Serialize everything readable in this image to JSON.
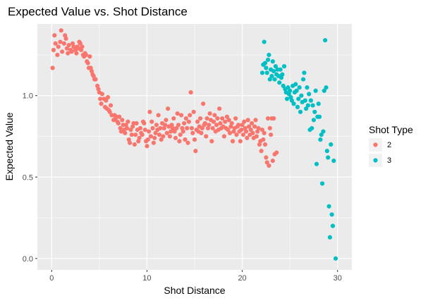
{
  "chart_data": {
    "type": "scatter",
    "title": "Expected Value vs. Shot Distance",
    "xlabel": "Shot Distance",
    "ylabel": "Expected Value",
    "xlim": [
      -1.5,
      31.5
    ],
    "ylim": [
      -0.07,
      1.44
    ],
    "x_ticks": [
      0,
      10,
      20,
      30
    ],
    "x_tick_labels": [
      "0",
      "10",
      "20",
      "30"
    ],
    "y_ticks": [
      0.0,
      0.5,
      1.0
    ],
    "y_tick_labels": [
      "0.0",
      "0.5",
      "1.0"
    ],
    "grid": true,
    "legend": {
      "title": "Shot Type",
      "position": "right",
      "entries": [
        {
          "label": "2",
          "color": "#F8766D"
        },
        {
          "label": "3",
          "color": "#00BFC4"
        }
      ]
    },
    "background": "#EBEBEB",
    "grid_color": "#FFFFFF",
    "series": [
      {
        "name": "2",
        "color": "#F8766D",
        "points": [
          [
            0.1,
            1.17
          ],
          [
            0.2,
            1.28
          ],
          [
            0.3,
            1.37
          ],
          [
            0.4,
            1.32
          ],
          [
            0.6,
            1.25
          ],
          [
            0.7,
            1.3
          ],
          [
            0.9,
            1.33
          ],
          [
            1.0,
            1.4
          ],
          [
            1.1,
            1.27
          ],
          [
            1.3,
            1.32
          ],
          [
            1.4,
            1.37
          ],
          [
            1.5,
            1.35
          ],
          [
            1.6,
            1.29
          ],
          [
            1.7,
            1.26
          ],
          [
            1.8,
            1.31
          ],
          [
            2.0,
            1.28
          ],
          [
            2.1,
            1.27
          ],
          [
            2.2,
            1.32
          ],
          [
            2.3,
            1.3
          ],
          [
            2.5,
            1.28
          ],
          [
            2.6,
            1.26
          ],
          [
            2.7,
            1.3
          ],
          [
            2.8,
            1.29
          ],
          [
            2.9,
            1.33
          ],
          [
            3.0,
            1.32
          ],
          [
            3.1,
            1.28
          ],
          [
            3.2,
            1.3
          ],
          [
            3.3,
            1.25
          ],
          [
            3.4,
            1.24
          ],
          [
            3.5,
            1.26
          ],
          [
            3.6,
            1.25
          ],
          [
            3.7,
            1.21
          ],
          [
            3.8,
            1.2
          ],
          [
            3.9,
            1.17
          ],
          [
            4.0,
            1.24
          ],
          [
            4.1,
            1.17
          ],
          [
            4.2,
            1.15
          ],
          [
            4.3,
            1.13
          ],
          [
            4.4,
            1.12
          ],
          [
            4.5,
            1.1
          ],
          [
            4.6,
            1.1
          ],
          [
            4.8,
            1.06
          ],
          [
            4.9,
            1.04
          ],
          [
            5.0,
            1.02
          ],
          [
            5.1,
            0.98
          ],
          [
            5.2,
            0.95
          ],
          [
            5.3,
            1.01
          ],
          [
            5.5,
            0.98
          ],
          [
            5.6,
            0.93
          ],
          [
            5.7,
            0.97
          ],
          [
            5.8,
            0.92
          ],
          [
            5.9,
            0.99
          ],
          [
            6.0,
            0.91
          ],
          [
            6.1,
            0.9
          ],
          [
            6.2,
            0.94
          ],
          [
            6.3,
            0.88
          ],
          [
            6.5,
            0.85
          ],
          [
            6.6,
            0.88
          ],
          [
            6.7,
            0.86
          ],
          [
            6.8,
            0.87
          ],
          [
            6.9,
            0.84
          ],
          [
            7.0,
            0.83
          ],
          [
            7.1,
            0.87
          ],
          [
            7.2,
            0.8
          ],
          [
            7.3,
            0.78
          ],
          [
            7.4,
            0.85
          ],
          [
            7.5,
            0.82
          ],
          [
            7.6,
            0.79
          ],
          [
            7.7,
            0.77
          ],
          [
            7.8,
            0.82
          ],
          [
            7.9,
            0.8
          ],
          [
            8.0,
            0.84
          ],
          [
            8.1,
            0.73
          ],
          [
            8.2,
            0.71
          ],
          [
            8.3,
            0.79
          ],
          [
            8.4,
            0.76
          ],
          [
            8.5,
            0.81
          ],
          [
            8.6,
            0.83
          ],
          [
            8.7,
            0.7
          ],
          [
            8.8,
            0.76
          ],
          [
            8.9,
            0.83
          ],
          [
            9.0,
            0.79
          ],
          [
            9.1,
            0.72
          ],
          [
            9.2,
            0.74
          ],
          [
            9.3,
            0.8
          ],
          [
            9.4,
            0.77
          ],
          [
            9.5,
            0.76
          ],
          [
            9.6,
            0.84
          ],
          [
            9.7,
            0.83
          ],
          [
            9.8,
            0.79
          ],
          [
            9.9,
            0.72
          ],
          [
            10.0,
            0.69
          ],
          [
            10.1,
            0.73
          ],
          [
            10.2,
            0.78
          ],
          [
            10.3,
            0.9
          ],
          [
            10.4,
            0.75
          ],
          [
            10.5,
            0.84
          ],
          [
            10.6,
            0.8
          ],
          [
            10.7,
            0.71
          ],
          [
            10.8,
            0.74
          ],
          [
            10.9,
            0.77
          ],
          [
            11.0,
            0.82
          ],
          [
            11.1,
            0.79
          ],
          [
            11.2,
            0.88
          ],
          [
            11.3,
            0.76
          ],
          [
            11.4,
            0.8
          ],
          [
            11.5,
            0.73
          ],
          [
            11.6,
            0.83
          ],
          [
            11.7,
            0.75
          ],
          [
            11.8,
            0.8
          ],
          [
            11.9,
            0.82
          ],
          [
            12.0,
            0.85
          ],
          [
            12.1,
            0.77
          ],
          [
            12.2,
            0.92
          ],
          [
            12.3,
            0.81
          ],
          [
            12.4,
            0.75
          ],
          [
            12.5,
            0.78
          ],
          [
            12.6,
            0.82
          ],
          [
            12.7,
            0.8
          ],
          [
            12.8,
            0.86
          ],
          [
            12.9,
            0.78
          ],
          [
            13.0,
            0.74
          ],
          [
            13.1,
            0.8
          ],
          [
            13.2,
            0.89
          ],
          [
            13.3,
            0.82
          ],
          [
            13.4,
            0.72
          ],
          [
            13.5,
            0.76
          ],
          [
            13.6,
            0.88
          ],
          [
            13.7,
            0.8
          ],
          [
            13.8,
            0.78
          ],
          [
            13.9,
            0.83
          ],
          [
            14.0,
            0.73
          ],
          [
            14.1,
            0.86
          ],
          [
            14.2,
            0.8
          ],
          [
            14.3,
            0.71
          ],
          [
            14.4,
            0.84
          ],
          [
            14.5,
            0.88
          ],
          [
            14.6,
            1.02
          ],
          [
            14.7,
            0.8
          ],
          [
            14.8,
            0.77
          ],
          [
            14.9,
            0.9
          ],
          [
            15.0,
            0.73
          ],
          [
            15.1,
            0.66
          ],
          [
            15.2,
            0.79
          ],
          [
            15.3,
            0.84
          ],
          [
            15.4,
            0.78
          ],
          [
            15.5,
            0.81
          ],
          [
            15.6,
            0.86
          ],
          [
            15.7,
            0.77
          ],
          [
            15.8,
            0.8
          ],
          [
            15.9,
            0.95
          ],
          [
            16.0,
            0.82
          ],
          [
            16.1,
            0.83
          ],
          [
            16.2,
            0.75
          ],
          [
            16.3,
            0.86
          ],
          [
            16.4,
            0.8
          ],
          [
            16.5,
            0.82
          ],
          [
            16.6,
            0.89
          ],
          [
            16.7,
            0.85
          ],
          [
            16.8,
            0.72
          ],
          [
            16.9,
            0.8
          ],
          [
            17.0,
            0.84
          ],
          [
            17.1,
            0.88
          ],
          [
            17.2,
            0.78
          ],
          [
            17.3,
            0.82
          ],
          [
            17.4,
            0.86
          ],
          [
            17.5,
            0.79
          ],
          [
            17.6,
            0.92
          ],
          [
            17.7,
            0.83
          ],
          [
            17.8,
            0.8
          ],
          [
            17.9,
            0.86
          ],
          [
            18.0,
            0.81
          ],
          [
            18.1,
            0.75
          ],
          [
            18.2,
            0.84
          ],
          [
            18.3,
            0.8
          ],
          [
            18.4,
            0.87
          ],
          [
            18.5,
            0.79
          ],
          [
            18.6,
            0.85
          ],
          [
            18.7,
            0.77
          ],
          [
            18.8,
            0.81
          ],
          [
            18.9,
            0.83
          ],
          [
            19.0,
            0.72
          ],
          [
            19.1,
            0.78
          ],
          [
            19.2,
            0.8
          ],
          [
            19.3,
            0.86
          ],
          [
            19.4,
            0.76
          ],
          [
            19.5,
            0.81
          ],
          [
            19.6,
            0.82
          ],
          [
            19.7,
            0.78
          ],
          [
            19.8,
            0.72
          ],
          [
            19.9,
            0.79
          ],
          [
            20.0,
            0.82
          ],
          [
            20.1,
            0.76
          ],
          [
            20.2,
            0.84
          ],
          [
            20.3,
            0.8
          ],
          [
            20.4,
            0.78
          ],
          [
            20.5,
            0.74
          ],
          [
            20.6,
            0.85
          ],
          [
            20.7,
            0.81
          ],
          [
            20.8,
            0.76
          ],
          [
            20.9,
            0.79
          ],
          [
            21.0,
            0.83
          ],
          [
            21.1,
            0.77
          ],
          [
            21.2,
            0.74
          ],
          [
            21.3,
            0.81
          ],
          [
            21.4,
            0.85
          ],
          [
            21.5,
            0.75
          ],
          [
            21.6,
            0.78
          ],
          [
            21.7,
            0.8
          ],
          [
            21.8,
            0.7
          ],
          [
            21.9,
            0.72
          ],
          [
            22.0,
            0.66
          ],
          [
            22.1,
            0.79
          ],
          [
            22.2,
            0.73
          ],
          [
            22.3,
            0.77
          ],
          [
            22.4,
            0.7
          ],
          [
            22.5,
            0.62
          ],
          [
            22.6,
            0.59
          ],
          [
            22.7,
            0.86
          ],
          [
            22.8,
            0.57
          ],
          [
            22.9,
            0.8
          ],
          [
            23.0,
            0.76
          ],
          [
            23.1,
            0.86
          ],
          [
            23.2,
            0.6
          ],
          [
            23.3,
            0.86
          ],
          [
            23.4,
            0.64
          ],
          [
            23.6,
            0.65
          ]
        ]
      },
      {
        "name": "3",
        "color": "#00BFC4",
        "points": [
          [
            22.1,
            1.14
          ],
          [
            22.2,
            1.19
          ],
          [
            22.3,
            1.33
          ],
          [
            22.4,
            1.2
          ],
          [
            22.5,
            1.17
          ],
          [
            22.6,
            1.14
          ],
          [
            22.7,
            1.22
          ],
          [
            22.8,
            1.25
          ],
          [
            22.9,
            1.1
          ],
          [
            23.0,
            1.16
          ],
          [
            23.1,
            1.12
          ],
          [
            23.2,
            1.21
          ],
          [
            23.3,
            1.15
          ],
          [
            23.4,
            1.1
          ],
          [
            23.5,
            1.18
          ],
          [
            23.6,
            1.13
          ],
          [
            23.7,
            1.16
          ],
          [
            23.8,
            1.12
          ],
          [
            23.9,
            1.08
          ],
          [
            24.0,
            1.16
          ],
          [
            24.1,
            1.11
          ],
          [
            24.2,
            1.13
          ],
          [
            24.3,
            1.06
          ],
          [
            24.4,
            1.18
          ],
          [
            24.5,
            1.04
          ],
          [
            24.6,
            1.02
          ],
          [
            24.7,
            0.98
          ],
          [
            24.8,
            1.05
          ],
          [
            24.9,
            1.01
          ],
          [
            25.0,
            1.03
          ],
          [
            25.1,
            0.99
          ],
          [
            25.2,
            0.97
          ],
          [
            25.3,
            1.06
          ],
          [
            25.4,
            0.95
          ],
          [
            25.5,
            1.02
          ],
          [
            25.6,
            1.07
          ],
          [
            25.7,
            1.03
          ],
          [
            25.8,
            0.93
          ],
          [
            25.9,
            0.98
          ],
          [
            26.0,
            1.05
          ],
          [
            26.1,
            0.9
          ],
          [
            26.2,
            1.0
          ],
          [
            26.3,
            0.96
          ],
          [
            26.4,
            1.1
          ],
          [
            26.5,
            1.14
          ],
          [
            26.6,
            0.97
          ],
          [
            26.7,
            0.92
          ],
          [
            26.8,
            1.05
          ],
          [
            26.9,
            0.94
          ],
          [
            27.0,
            1.01
          ],
          [
            27.1,
            0.79
          ],
          [
            27.2,
            0.97
          ],
          [
            27.3,
            0.8
          ],
          [
            27.4,
            0.94
          ],
          [
            27.5,
            0.85
          ],
          [
            27.6,
            0.9
          ],
          [
            27.7,
            1.03
          ],
          [
            27.8,
            0.58
          ],
          [
            27.9,
            0.87
          ],
          [
            28.0,
            0.95
          ],
          [
            28.1,
            0.87
          ],
          [
            28.2,
            0.73
          ],
          [
            28.3,
            0.76
          ],
          [
            28.4,
            0.46
          ],
          [
            28.5,
            0.78
          ],
          [
            28.6,
            1.03
          ],
          [
            28.7,
            1.34
          ],
          [
            28.8,
            1.05
          ],
          [
            28.9,
            0.66
          ],
          [
            29.0,
            0.62
          ],
          [
            29.1,
            0.32
          ],
          [
            29.2,
            0.13
          ],
          [
            29.3,
            0.7
          ],
          [
            29.4,
            0.27
          ],
          [
            29.5,
            0.2
          ],
          [
            29.6,
            0.6
          ],
          [
            29.8,
            0.0
          ]
        ]
      }
    ]
  }
}
